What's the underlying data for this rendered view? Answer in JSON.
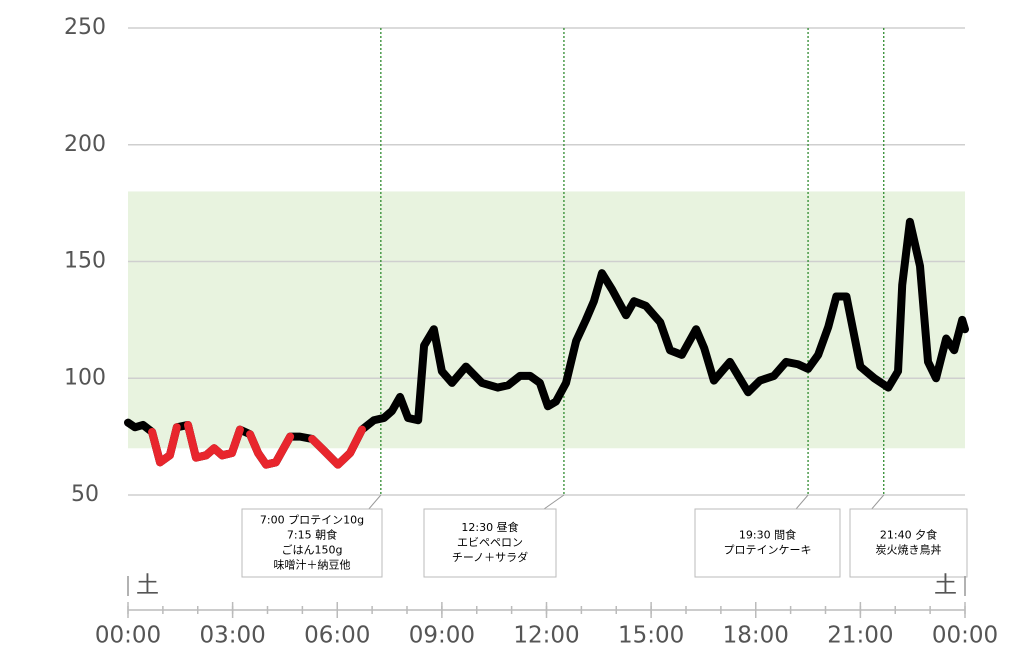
{
  "chart_data": {
    "type": "line",
    "xlim": [
      0,
      24
    ],
    "xticks": [
      {
        "value": 0,
        "label": "00:00"
      },
      {
        "value": 3,
        "label": "03:00"
      },
      {
        "value": 6,
        "label": "06:00"
      },
      {
        "value": 9,
        "label": "09:00"
      },
      {
        "value": 12,
        "label": "12:00"
      },
      {
        "value": 15,
        "label": "15:00"
      },
      {
        "value": 18,
        "label": "18:00"
      },
      {
        "value": 21,
        "label": "21:00"
      },
      {
        "value": 24,
        "label": "00:00"
      }
    ],
    "ylim": [
      50,
      250
    ],
    "yticks": [
      50,
      100,
      150,
      200,
      250
    ],
    "grid": true,
    "target_range": [
      70,
      180
    ],
    "target_color": "#e8f3df",
    "low_color": "#e8262d",
    "day_labels": [
      {
        "x": 0,
        "label": "土"
      },
      {
        "x": 24,
        "label": "土"
      }
    ],
    "series": [
      {
        "color": "#000000",
        "x": [
          0.0,
          0.2,
          0.43,
          0.69,
          0.92,
          1.2,
          1.4,
          1.72,
          1.95,
          2.24,
          2.47,
          2.7,
          2.98,
          3.21,
          3.5,
          3.73,
          3.96,
          4.24,
          4.65,
          4.93,
          5.28,
          5.62,
          6.02,
          6.37,
          6.71,
          7.05,
          7.34,
          7.57,
          7.8,
          8.03,
          8.32,
          8.49,
          8.77,
          9.0,
          9.29,
          9.69,
          10.15,
          10.6,
          10.9,
          11.24,
          11.53,
          11.81,
          12.04,
          12.27,
          12.56,
          12.85,
          13.13,
          13.36,
          13.59,
          13.88,
          14.28,
          14.51,
          14.85,
          15.26,
          15.54,
          15.88,
          16.29,
          16.52,
          16.8,
          17.26,
          17.78,
          18.12,
          18.52,
          18.87,
          19.21,
          19.5,
          19.79,
          20.08,
          20.31,
          20.6,
          21.0,
          21.4,
          21.8,
          22.08,
          22.2,
          22.42,
          22.71,
          22.94,
          23.17,
          23.46,
          23.69,
          23.92,
          24.0
        ],
        "values": [
          81,
          79,
          80,
          77,
          64,
          67,
          79,
          80,
          66,
          67,
          70,
          67,
          68,
          78,
          76,
          68,
          63,
          64,
          75,
          75,
          74,
          69,
          63,
          68,
          78,
          82,
          83,
          86,
          92,
          83,
          82,
          114,
          121,
          103,
          98,
          105,
          98,
          96,
          97,
          101,
          101,
          98,
          88,
          90,
          98,
          116,
          125,
          133,
          145,
          138,
          127,
          133,
          131,
          124,
          112,
          110,
          121,
          113,
          99,
          107,
          94,
          99,
          101,
          107,
          106,
          104,
          110,
          122,
          135,
          135,
          105,
          100,
          96,
          103,
          140,
          167,
          148,
          107,
          100,
          117,
          112,
          125,
          121
        ]
      }
    ],
    "events": [
      {
        "x": 7.25,
        "lines": [
          "7:00 プロテイン10g",
          "7:15 朝食",
          "ごはん150g",
          "味噌汁＋納豆他"
        ]
      },
      {
        "x": 12.5,
        "lines": [
          "12:30 昼食",
          "エビペペロン",
          "チーノ＋サラダ"
        ]
      },
      {
        "x": 19.5,
        "lines": [
          "19:30 間食",
          "プロテインケーキ"
        ]
      },
      {
        "x": 21.67,
        "lines": [
          "21:40 夕食",
          "炭火焼き鳥丼"
        ]
      }
    ]
  }
}
